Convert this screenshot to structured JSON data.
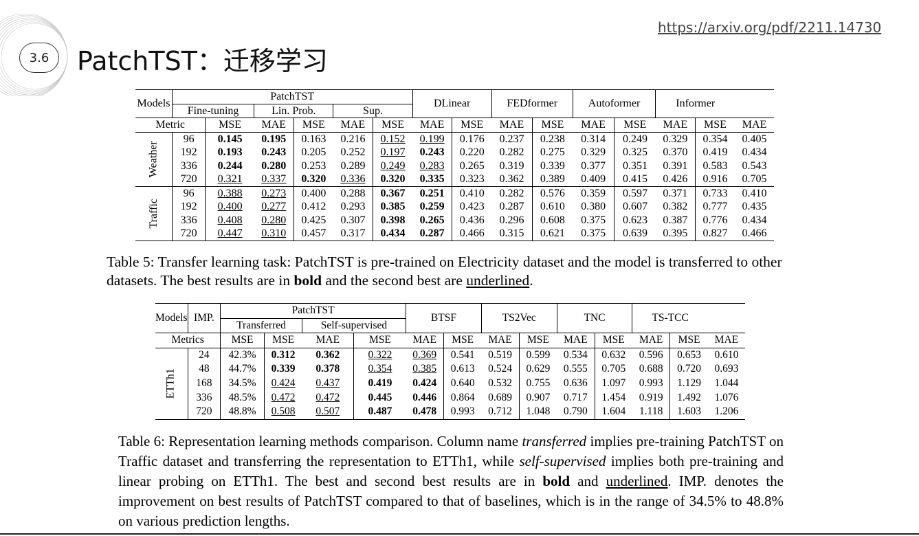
{
  "slide": {
    "badge": "3.6",
    "title": "PatchTST：迁移学习",
    "url": "https://arxiv.org/pdf/2211.14730"
  },
  "table5": {
    "h_models": "Models",
    "h_patchtst": "PatchTST",
    "h_finetuning": "Fine-tuning",
    "h_linprob": "Lin. Prob.",
    "h_sup": "Sup.",
    "h_dlinear": "DLinear",
    "h_fedformer": "FEDformer",
    "h_autoformer": "Autoformer",
    "h_informer": "Informer",
    "h_metric": "Metric",
    "mse": "MSE",
    "mae": "MAE",
    "weather_label": "Weather",
    "traffic_label": "Traffic",
    "weather": [
      {
        "h": "96",
        "v": [
          "0.145",
          "0.195",
          "0.163",
          "0.216",
          "0.152",
          "0.199",
          "0.176",
          "0.237",
          "0.238",
          "0.314",
          "0.249",
          "0.329",
          "0.354",
          "0.405"
        ]
      },
      {
        "h": "192",
        "v": [
          "0.193",
          "0.243",
          "0.205",
          "0.252",
          "0.197",
          "0.243",
          "0.220",
          "0.282",
          "0.275",
          "0.329",
          "0.325",
          "0.370",
          "0.419",
          "0.434"
        ]
      },
      {
        "h": "336",
        "v": [
          "0.244",
          "0.280",
          "0.253",
          "0.289",
          "0.249",
          "0.283",
          "0.265",
          "0.319",
          "0.339",
          "0.377",
          "0.351",
          "0.391",
          "0.583",
          "0.543"
        ]
      },
      {
        "h": "720",
        "v": [
          "0.321",
          "0.337",
          "0.320",
          "0.336",
          "0.320",
          "0.335",
          "0.323",
          "0.362",
          "0.389",
          "0.409",
          "0.415",
          "0.426",
          "0.916",
          "0.705"
        ]
      }
    ],
    "traffic": [
      {
        "h": "96",
        "v": [
          "0.388",
          "0.273",
          "0.400",
          "0.288",
          "0.367",
          "0.251",
          "0.410",
          "0.282",
          "0.576",
          "0.359",
          "0.597",
          "0.371",
          "0.733",
          "0.410"
        ]
      },
      {
        "h": "192",
        "v": [
          "0.400",
          "0.277",
          "0.412",
          "0.293",
          "0.385",
          "0.259",
          "0.423",
          "0.287",
          "0.610",
          "0.380",
          "0.607",
          "0.382",
          "0.777",
          "0.435"
        ]
      },
      {
        "h": "336",
        "v": [
          "0.408",
          "0.280",
          "0.425",
          "0.307",
          "0.398",
          "0.265",
          "0.436",
          "0.296",
          "0.608",
          "0.375",
          "0.623",
          "0.387",
          "0.776",
          "0.434"
        ]
      },
      {
        "h": "720",
        "v": [
          "0.447",
          "0.310",
          "0.457",
          "0.317",
          "0.434",
          "0.287",
          "0.466",
          "0.315",
          "0.621",
          "0.375",
          "0.639",
          "0.395",
          "0.827",
          "0.466"
        ]
      }
    ]
  },
  "caption5": {
    "p1": "Table 5: Transfer learning task: PatchTST is pre-trained on Electricity dataset and the model is transferred to other datasets. The best results are in ",
    "bold": "bold",
    "p2": " and the second best are ",
    "underlined": "underlined",
    "p3": "."
  },
  "table6": {
    "h_models": "Models",
    "h_imp": "IMP.",
    "h_patchtst": "PatchTST",
    "h_transferred": "Transferred",
    "h_selfsup": "Self-supervised",
    "h_btsf": "BTSF",
    "h_ts2vec": "TS2Vec",
    "h_tnc": "TNC",
    "h_tstcc": "TS-TCC",
    "h_metrics": "Metrics",
    "mse": "MSE",
    "mae": "MAE",
    "etth1_label": "ETTh1",
    "rows": [
      {
        "h": "24",
        "imp": "42.3%",
        "v": [
          "0.312",
          "0.362",
          "0.322",
          "0.369",
          "0.541",
          "0.519",
          "0.599",
          "0.534",
          "0.632",
          "0.596",
          "0.653",
          "0.610"
        ]
      },
      {
        "h": "48",
        "imp": "44.7%",
        "v": [
          "0.339",
          "0.378",
          "0.354",
          "0.385",
          "0.613",
          "0.524",
          "0.629",
          "0.555",
          "0.705",
          "0.688",
          "0.720",
          "0.693"
        ]
      },
      {
        "h": "168",
        "imp": "34.5%",
        "v": [
          "0.424",
          "0.437",
          "0.419",
          "0.424",
          "0.640",
          "0.532",
          "0.755",
          "0.636",
          "1.097",
          "0.993",
          "1.129",
          "1.044"
        ]
      },
      {
        "h": "336",
        "imp": "48.5%",
        "v": [
          "0.472",
          "0.472",
          "0.445",
          "0.446",
          "0.864",
          "0.689",
          "0.907",
          "0.717",
          "1.454",
          "0.919",
          "1.492",
          "1.076"
        ]
      },
      {
        "h": "720",
        "imp": "48.8%",
        "v": [
          "0.508",
          "0.507",
          "0.487",
          "0.478",
          "0.993",
          "0.712",
          "1.048",
          "0.790",
          "1.604",
          "1.118",
          "1.603",
          "1.206"
        ]
      }
    ]
  },
  "caption6": {
    "p1": "Table 6: Representation learning methods comparison.  Column name ",
    "i1": "transferred",
    "p2": " implies pre-training PatchTST on Traffic dataset and transferring the representation to ETTh1, while ",
    "i2": "self-supervised",
    "p3": " implies both pre-training and linear probing on ETTh1. The best and second best results are in ",
    "bold": "bold",
    "p4": " and ",
    "underlined": "underlined",
    "p5": ". IMP. denotes the improvement on best results of PatchTST compared to that of baselines, which is in the range of 34.5% to 48.8% on various prediction lengths."
  }
}
